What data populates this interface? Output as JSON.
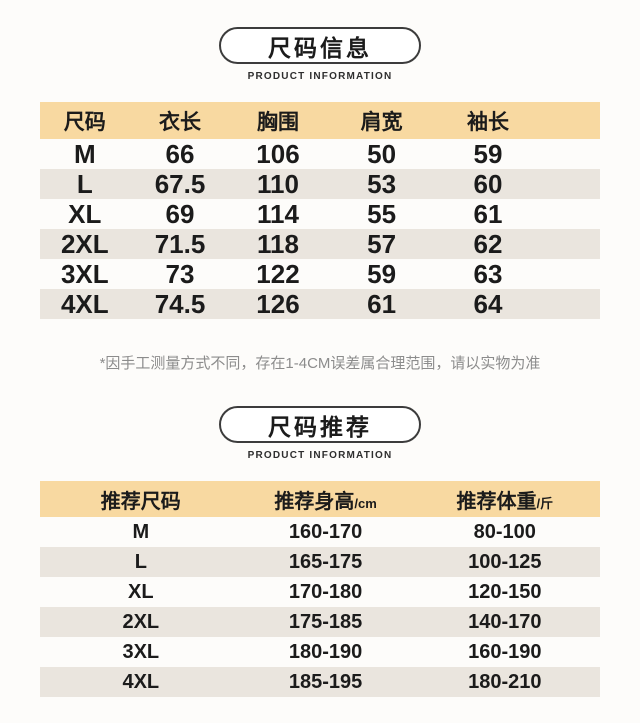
{
  "colors": {
    "header_band": "#F8D9A1",
    "alt_row": "#EAE5DE",
    "text": "#1B1B1B",
    "footnote": "#8C8C8C",
    "title_border": "#3C3C3C",
    "page_bg": "#FDFCFA"
  },
  "section1": {
    "title": "尺码信息",
    "subtitle": "PRODUCT INFORMATION",
    "table": {
      "headers": [
        "尺码",
        "衣长",
        "胸围",
        "肩宽",
        "袖长"
      ],
      "rows": [
        [
          "M",
          "66",
          "106",
          "50",
          "59"
        ],
        [
          "L",
          "67.5",
          "110",
          "53",
          "60"
        ],
        [
          "XL",
          "69",
          "114",
          "55",
          "61"
        ],
        [
          "2XL",
          "71.5",
          "118",
          "57",
          "62"
        ],
        [
          "3XL",
          "73",
          "122",
          "59",
          "63"
        ],
        [
          "4XL",
          "74.5",
          "126",
          "61",
          "64"
        ]
      ]
    },
    "footnote": "*因手工测量方式不同，存在1-4CM误差属合理范围，请以实物为准"
  },
  "section2": {
    "title": "尺码推荐",
    "subtitle": "PRODUCT INFORMATION",
    "table": {
      "headers": [
        {
          "label": "推荐尺码",
          "unit": ""
        },
        {
          "label": "推荐身高",
          "unit": "/cm"
        },
        {
          "label": "推荐体重",
          "unit": "/斤"
        }
      ],
      "rows": [
        [
          "M",
          "160-170",
          "80-100"
        ],
        [
          "L",
          "165-175",
          "100-125"
        ],
        [
          "XL",
          "170-180",
          "120-150"
        ],
        [
          "2XL",
          "175-185",
          "140-170"
        ],
        [
          "3XL",
          "180-190",
          "160-190"
        ],
        [
          "4XL",
          "185-195",
          "180-210"
        ]
      ]
    }
  }
}
